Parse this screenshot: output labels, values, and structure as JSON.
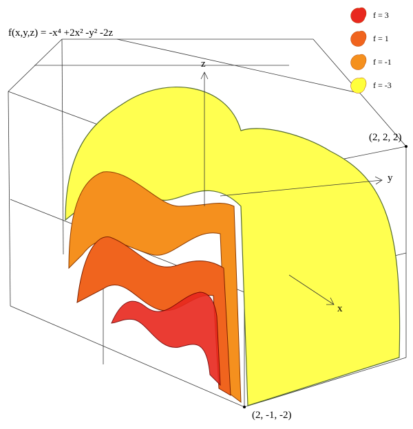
{
  "title": "f(x,y,z) = -x⁴ +2x² -y² -2z",
  "legend": [
    {
      "label": "f = 3",
      "color": "#e8281e"
    },
    {
      "label": "f = 1",
      "color": "#f0641e"
    },
    {
      "label": "f = -1",
      "color": "#f5901e"
    },
    {
      "label": "f = -3",
      "color": "#ffff3c"
    }
  ],
  "axes": {
    "z": "z",
    "y": "y",
    "x": "x"
  },
  "points": {
    "top": "(2, 2, 2)",
    "bottom": "(2, -1, -2)"
  }
}
